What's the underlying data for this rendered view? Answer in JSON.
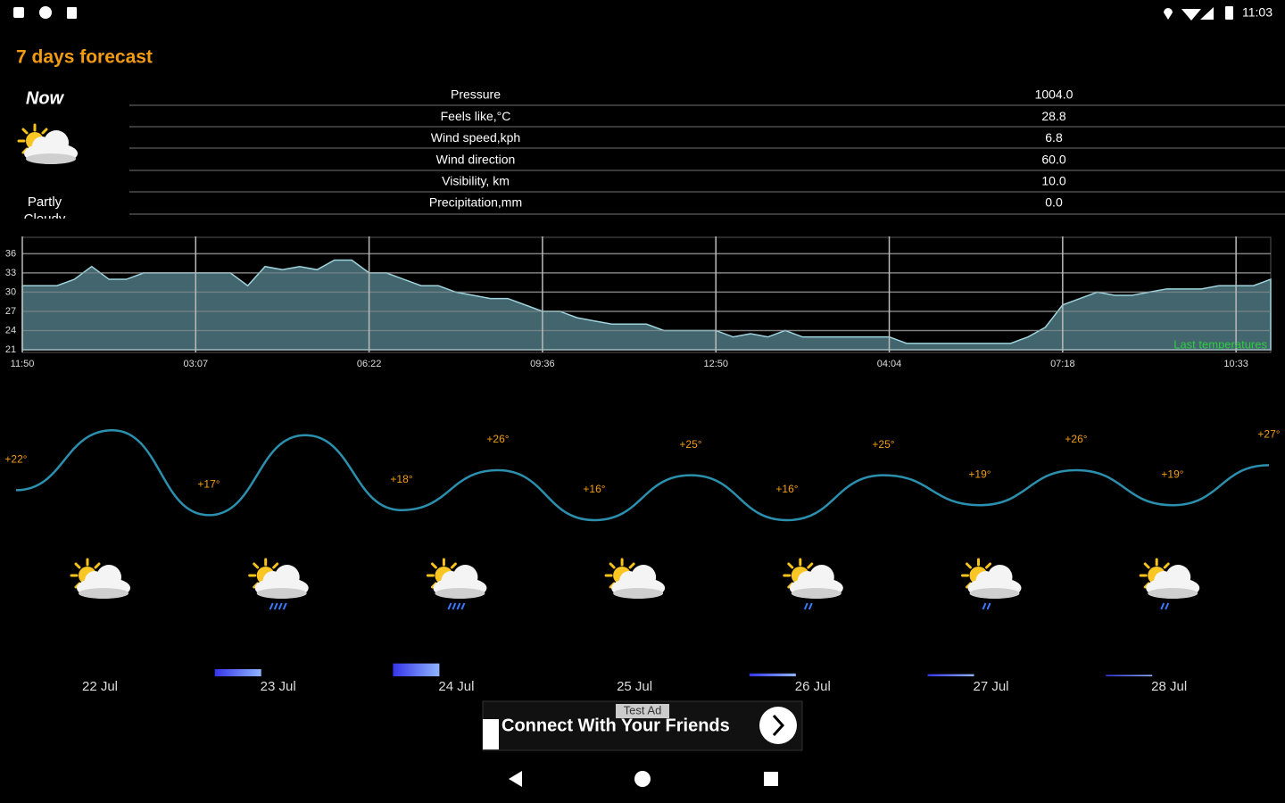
{
  "status_bar": {
    "time": "11:03"
  },
  "header": {
    "title": "7 days forecast"
  },
  "now": {
    "label": "Now",
    "condition": "Partly Cloudy"
  },
  "details": {
    "rows": [
      [
        "Pressure",
        "1004.0"
      ],
      [
        "Feels like,°C",
        "28.8"
      ],
      [
        "Wind speed,kph",
        "6.8"
      ],
      [
        "Wind direction",
        "60.0"
      ],
      [
        "Visibility, km",
        "10.0"
      ],
      [
        "Precipitation,mm",
        "0.0"
      ]
    ]
  },
  "chart_data": [
    {
      "type": "area",
      "series": [
        {
          "name": "Last temperatures",
          "color": "#4f7780",
          "values": [
            31,
            31,
            31,
            32,
            34,
            32,
            32,
            33,
            33,
            33,
            33,
            33,
            33,
            31,
            34,
            33.5,
            34,
            33.5,
            35,
            35,
            33,
            33,
            32,
            31,
            31,
            30,
            29.5,
            29,
            29,
            28,
            27,
            27,
            26,
            25.5,
            25,
            25,
            25,
            24,
            24,
            24,
            24,
            23,
            23.5,
            23,
            24,
            23,
            23,
            23,
            23,
            23,
            23,
            22,
            22,
            22,
            22,
            22,
            22,
            22,
            23,
            24.5,
            28,
            29,
            30,
            29.5,
            29.5,
            30,
            30.5,
            30.5,
            30.5,
            31,
            31,
            31,
            32
          ]
        }
      ],
      "xlim": [
        0,
        72
      ],
      "xticks": [
        {
          "value": 0,
          "label": "11:50"
        },
        {
          "value": 10,
          "label": "03:07"
        },
        {
          "value": 20,
          "label": "06:22"
        },
        {
          "value": 30,
          "label": "09:36"
        },
        {
          "value": 40,
          "label": "12:50"
        },
        {
          "value": 50,
          "label": "04:04"
        },
        {
          "value": 60,
          "label": "07:18"
        },
        {
          "value": 70,
          "label": "10:33"
        }
      ],
      "ylim": [
        21,
        38
      ],
      "yticks": [
        21,
        24,
        27,
        30,
        33,
        36
      ],
      "grid": true
    },
    {
      "type": "line",
      "color": "#2b8fae",
      "values": [
        22,
        34,
        17,
        33,
        18,
        26,
        16,
        25,
        16,
        25,
        19,
        26,
        19,
        27
      ],
      "value_labels": [
        "+22°",
        null,
        "+17°",
        null,
        "+18°",
        "+26°",
        "+16°",
        "+25°",
        "+16°",
        "+25°",
        "+19°",
        "+26°",
        "+19°",
        "+27°"
      ],
      "ylim": [
        10,
        40
      ]
    }
  ],
  "days": {
    "dates": [
      "22 Jul",
      "23 Jul",
      "24 Jul",
      "25 Jul",
      "26 Jul",
      "27 Jul",
      "28 Jul"
    ],
    "precipitation": [
      0,
      1,
      1.8,
      0,
      0.4,
      0.3,
      0.2
    ]
  },
  "ad": {
    "badge": "Test Ad",
    "text": "Connect With Your Friends"
  }
}
